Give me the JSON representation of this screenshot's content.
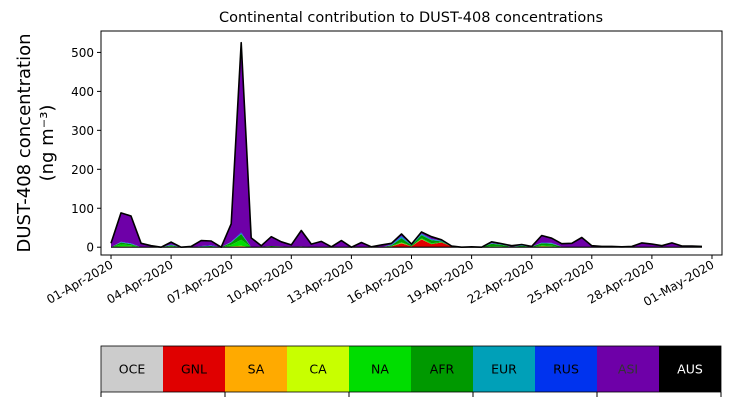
{
  "chart_data": {
    "type": "area",
    "stacked": true,
    "title": "Continental contribution to DUST-408 concentrations",
    "ylabel_line1": "DUST-408 concentration",
    "ylabel_line2": "(ng m⁻³)",
    "xlabel": "",
    "ylim": [
      -20,
      555
    ],
    "yticks": [
      0,
      100,
      200,
      300,
      400,
      500
    ],
    "xlim": [
      "2020-03-31T12",
      "2020-05-01T12"
    ],
    "xticks": [
      "2020-04-01",
      "2020-04-04",
      "2020-04-07",
      "2020-04-10",
      "2020-04-13",
      "2020-04-16",
      "2020-04-19",
      "2020-04-22",
      "2020-04-25",
      "2020-04-28",
      "2020-05-01"
    ],
    "xtick_labels": [
      "01-Apr-2020",
      "04-Apr-2020",
      "07-Apr-2020",
      "10-Apr-2020",
      "13-Apr-2020",
      "16-Apr-2020",
      "19-Apr-2020",
      "22-Apr-2020",
      "25-Apr-2020",
      "28-Apr-2020",
      "01-May-2020"
    ],
    "grid": false,
    "x": [
      "2020-04-01T00",
      "2020-04-01T12",
      "2020-04-02T00",
      "2020-04-02T12",
      "2020-04-03T00",
      "2020-04-03T12",
      "2020-04-04T00",
      "2020-04-04T12",
      "2020-04-05T00",
      "2020-04-05T12",
      "2020-04-06T00",
      "2020-04-06T12",
      "2020-04-07T00",
      "2020-04-07T12",
      "2020-04-08T00",
      "2020-04-08T12",
      "2020-04-09T00",
      "2020-04-09T12",
      "2020-04-10T00",
      "2020-04-10T12",
      "2020-04-11T00",
      "2020-04-11T12",
      "2020-04-12T00",
      "2020-04-12T12",
      "2020-04-13T00",
      "2020-04-13T12",
      "2020-04-14T00",
      "2020-04-14T12",
      "2020-04-15T00",
      "2020-04-15T12",
      "2020-04-16T00",
      "2020-04-16T12",
      "2020-04-17T00",
      "2020-04-17T12",
      "2020-04-18T00",
      "2020-04-18T12",
      "2020-04-19T00",
      "2020-04-19T12",
      "2020-04-20T00",
      "2020-04-20T12",
      "2020-04-21T00",
      "2020-04-21T12",
      "2020-04-22T00",
      "2020-04-22T12",
      "2020-04-23T00",
      "2020-04-23T12",
      "2020-04-24T00",
      "2020-04-24T12",
      "2020-04-25T00",
      "2020-04-25T12",
      "2020-04-26T00",
      "2020-04-26T12",
      "2020-04-27T00",
      "2020-04-27T12",
      "2020-04-28T00",
      "2020-04-28T12",
      "2020-04-29T00",
      "2020-04-29T12",
      "2020-04-30T00",
      "2020-04-30T12"
    ],
    "series": [
      {
        "name": "OCE",
        "color": "#cccccc",
        "values": [
          0,
          0,
          0,
          0,
          0,
          0,
          0,
          0,
          0,
          0,
          0,
          0,
          0,
          0,
          0,
          0,
          0,
          0,
          0,
          0,
          0,
          0,
          0,
          0,
          0,
          0,
          0,
          0,
          0,
          0,
          0,
          0,
          0,
          0,
          0,
          0,
          0,
          0,
          0,
          0,
          0,
          0,
          0,
          0,
          0,
          0,
          0,
          0,
          0,
          0,
          0,
          0,
          0,
          0,
          0,
          0,
          0,
          0,
          0,
          0
        ]
      },
      {
        "name": "GNL",
        "color": "#e00000",
        "values": [
          0,
          1,
          1,
          0,
          0,
          0,
          0,
          0,
          0,
          0,
          0,
          0,
          1,
          2,
          0,
          0,
          0,
          0,
          0,
          0,
          0,
          0,
          0,
          0,
          0,
          0,
          0,
          0,
          2,
          10,
          2,
          20,
          8,
          12,
          2,
          0,
          0,
          0,
          0,
          0,
          0,
          0,
          0,
          2,
          1,
          0,
          0,
          0,
          0,
          0,
          0,
          0,
          0,
          0,
          0,
          0,
          0,
          0,
          0,
          0
        ]
      },
      {
        "name": "SA",
        "color": "#ffaa00",
        "values": [
          0,
          0,
          0,
          0,
          0,
          0,
          0,
          0,
          0,
          0,
          0,
          0,
          0,
          0,
          0,
          0,
          0,
          0,
          0,
          0,
          0,
          0,
          0,
          0,
          0,
          0,
          0,
          0,
          0,
          0,
          0,
          0,
          0,
          0,
          0,
          0,
          0,
          0,
          0,
          0,
          0,
          0,
          0,
          0,
          0,
          0,
          0,
          0,
          0,
          0,
          0,
          0,
          0,
          0,
          0,
          0,
          0,
          0,
          0,
          0
        ]
      },
      {
        "name": "CA",
        "color": "#c8ff00",
        "values": [
          0,
          1,
          1,
          0,
          0,
          0,
          1,
          0,
          0,
          0,
          0,
          0,
          1,
          2,
          0,
          0,
          0,
          0,
          0,
          0,
          0,
          0,
          0,
          0,
          0,
          0,
          0,
          0,
          0,
          1,
          0,
          1,
          0,
          0,
          0,
          0,
          0,
          0,
          1,
          1,
          0,
          0,
          0,
          1,
          1,
          0,
          0,
          0,
          0,
          0,
          0,
          0,
          0,
          0,
          0,
          0,
          0,
          0,
          0,
          0
        ]
      },
      {
        "name": "NA",
        "color": "#00dd00",
        "values": [
          0,
          5,
          3,
          0,
          0,
          0,
          2,
          0,
          0,
          0,
          0,
          0,
          4,
          15,
          0,
          0,
          0,
          0,
          0,
          0,
          0,
          0,
          0,
          0,
          0,
          0,
          0,
          0,
          1,
          2,
          0,
          2,
          2,
          1,
          0,
          0,
          0,
          0,
          2,
          1,
          0,
          1,
          0,
          2,
          2,
          0,
          0,
          0,
          0,
          0,
          0,
          0,
          0,
          0,
          0,
          0,
          0,
          0,
          0,
          0
        ]
      },
      {
        "name": "AFR",
        "color": "#009900",
        "values": [
          0,
          5,
          3,
          0,
          0,
          0,
          2,
          0,
          0,
          2,
          3,
          0,
          6,
          15,
          0,
          1,
          3,
          2,
          1,
          2,
          0,
          1,
          0,
          1,
          0,
          0,
          0,
          0,
          2,
          10,
          3,
          8,
          8,
          2,
          0,
          0,
          0,
          0,
          6,
          4,
          1,
          3,
          1,
          5,
          5,
          1,
          0,
          0,
          0,
          0,
          0,
          0,
          0,
          0,
          0,
          0,
          1,
          0,
          0,
          0
        ]
      },
      {
        "name": "EUR",
        "color": "#00a0b8",
        "values": [
          0,
          1,
          1,
          0,
          0,
          0,
          1,
          0,
          0,
          0,
          1,
          0,
          1,
          2,
          0,
          0,
          0,
          0,
          0,
          0,
          0,
          0,
          0,
          0,
          0,
          0,
          0,
          0,
          1,
          4,
          1,
          3,
          2,
          2,
          0,
          0,
          0,
          0,
          1,
          1,
          0,
          1,
          0,
          1,
          1,
          0,
          0,
          0,
          0,
          0,
          0,
          0,
          0,
          0,
          0,
          0,
          0,
          0,
          0,
          0
        ]
      },
      {
        "name": "RUS",
        "color": "#0033ee",
        "values": [
          0,
          1,
          1,
          0,
          0,
          0,
          1,
          0,
          0,
          1,
          1,
          0,
          1,
          2,
          0,
          0,
          0,
          0,
          0,
          0,
          0,
          0,
          0,
          0,
          0,
          0,
          0,
          0,
          1,
          2,
          0,
          1,
          1,
          0,
          0,
          0,
          0,
          0,
          0,
          0,
          0,
          0,
          0,
          1,
          1,
          0,
          0,
          0,
          0,
          0,
          0,
          0,
          0,
          0,
          0,
          0,
          0,
          0,
          0,
          0
        ]
      },
      {
        "name": "ASI",
        "color": "#6e00a8",
        "values": [
          10,
          74,
          70,
          10,
          4,
          0,
          6,
          0,
          2,
          14,
          11,
          0,
          46,
          487,
          24,
          3,
          24,
          12,
          5,
          41,
          8,
          14,
          1,
          16,
          0,
          12,
          1,
          6,
          3,
          5,
          2,
          4,
          6,
          2,
          1,
          0,
          1,
          0,
          4,
          2,
          3,
          2,
          1,
          18,
          12,
          8,
          10,
          25,
          4,
          2,
          2,
          1,
          2,
          11,
          8,
          4,
          10,
          3,
          3,
          2
        ]
      },
      {
        "name": "AUS",
        "color": "#000000",
        "values": [
          0,
          0,
          0,
          0,
          0,
          0,
          0,
          0,
          0,
          0,
          0,
          0,
          0,
          0,
          0,
          0,
          0,
          0,
          0,
          0,
          0,
          0,
          0,
          0,
          0,
          0,
          0,
          0,
          0,
          0,
          0,
          0,
          0,
          0,
          0,
          0,
          0,
          0,
          0,
          0,
          0,
          0,
          0,
          0,
          0,
          0,
          0,
          0,
          0,
          0,
          0,
          0,
          0,
          0,
          0,
          0,
          0,
          0,
          0,
          0
        ]
      }
    ]
  },
  "legend": {
    "title": "",
    "text_colors": {
      "default": "#000000",
      "ASI": "#333333",
      "AUS": "#ffffff"
    }
  }
}
